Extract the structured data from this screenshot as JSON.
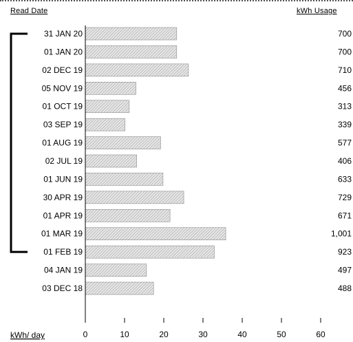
{
  "header": {
    "read_date_label": "Read Date",
    "usage_label": "kWh Usage"
  },
  "chart_data": {
    "type": "bar",
    "orientation": "horizontal",
    "xlabel": "kWh/ day",
    "xlim": [
      0,
      60
    ],
    "x_ticks": [
      "0",
      "10",
      "20",
      "30",
      "40",
      "50",
      "60"
    ],
    "categories": [
      "31 JAN 20",
      "01 JAN 20",
      "02 DEC 19",
      "05 NOV 19",
      "01 OCT 19",
      "03 SEP 19",
      "01 AUG 19",
      "02 JUL 19",
      "01 JUN 19",
      "30 APR 19",
      "01 APR 19",
      "01 MAR 19",
      "01 FEB 19",
      "04 JAN 19",
      "03 DEC 18"
    ],
    "values": [
      23.3,
      23.3,
      26.3,
      12.9,
      11.2,
      10.1,
      19.2,
      13.1,
      19.8,
      25.1,
      21.6,
      35.8,
      32.9,
      15.6,
      17.4
    ],
    "usage_labels": [
      "700",
      "700",
      "710",
      "456",
      "313",
      "339",
      "577",
      "406",
      "633",
      "729",
      "671",
      "1,001",
      "923",
      "497",
      "488"
    ],
    "bracket_range": [
      "31 JAN 20",
      "01 FEB 19"
    ],
    "bar_fill": "hatched",
    "colors": {
      "bar_fill": "#e6e6e6",
      "bar_hatch": "#9a9a9a",
      "bar_edge": "#8c8c8c"
    }
  }
}
